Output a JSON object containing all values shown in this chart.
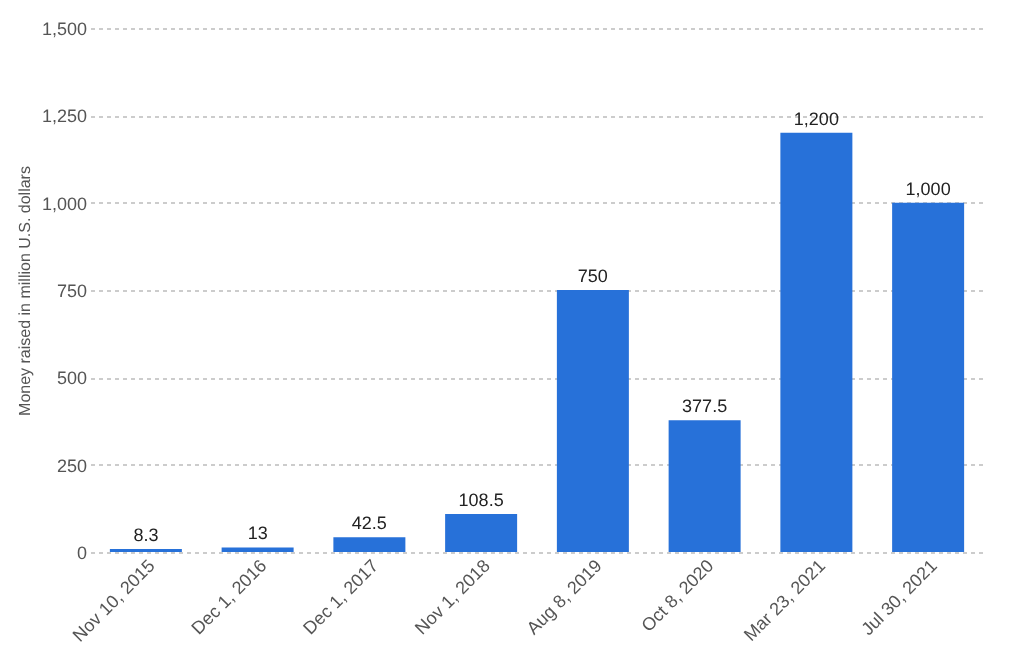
{
  "chart_data": {
    "type": "bar",
    "ylabel": "Money raised in million U.S. dollars",
    "categories": [
      "Nov 10, 2015",
      "Dec 1, 2016",
      "Dec 1, 2017",
      "Nov 1, 2018",
      "Aug 8, 2019",
      "Oct 8, 2020",
      "Mar 23, 2021",
      "Jul 30, 2021"
    ],
    "values": [
      8.3,
      13,
      42.5,
      108.5,
      750,
      377.5,
      1200,
      1000
    ],
    "value_labels": [
      "8.3",
      "13",
      "42.5",
      "108.5",
      "750",
      "377.5",
      "1,200",
      "1,000"
    ],
    "color": "#2771d9",
    "ylim": [
      0,
      1500
    ],
    "yticks": [
      0,
      250,
      500,
      750,
      {
        "value": 1000,
        "label": "1,000"
      },
      {
        "value": 1250,
        "label": "1,250"
      },
      {
        "value": 1500,
        "label": "1,500"
      }
    ],
    "grid": "y"
  }
}
